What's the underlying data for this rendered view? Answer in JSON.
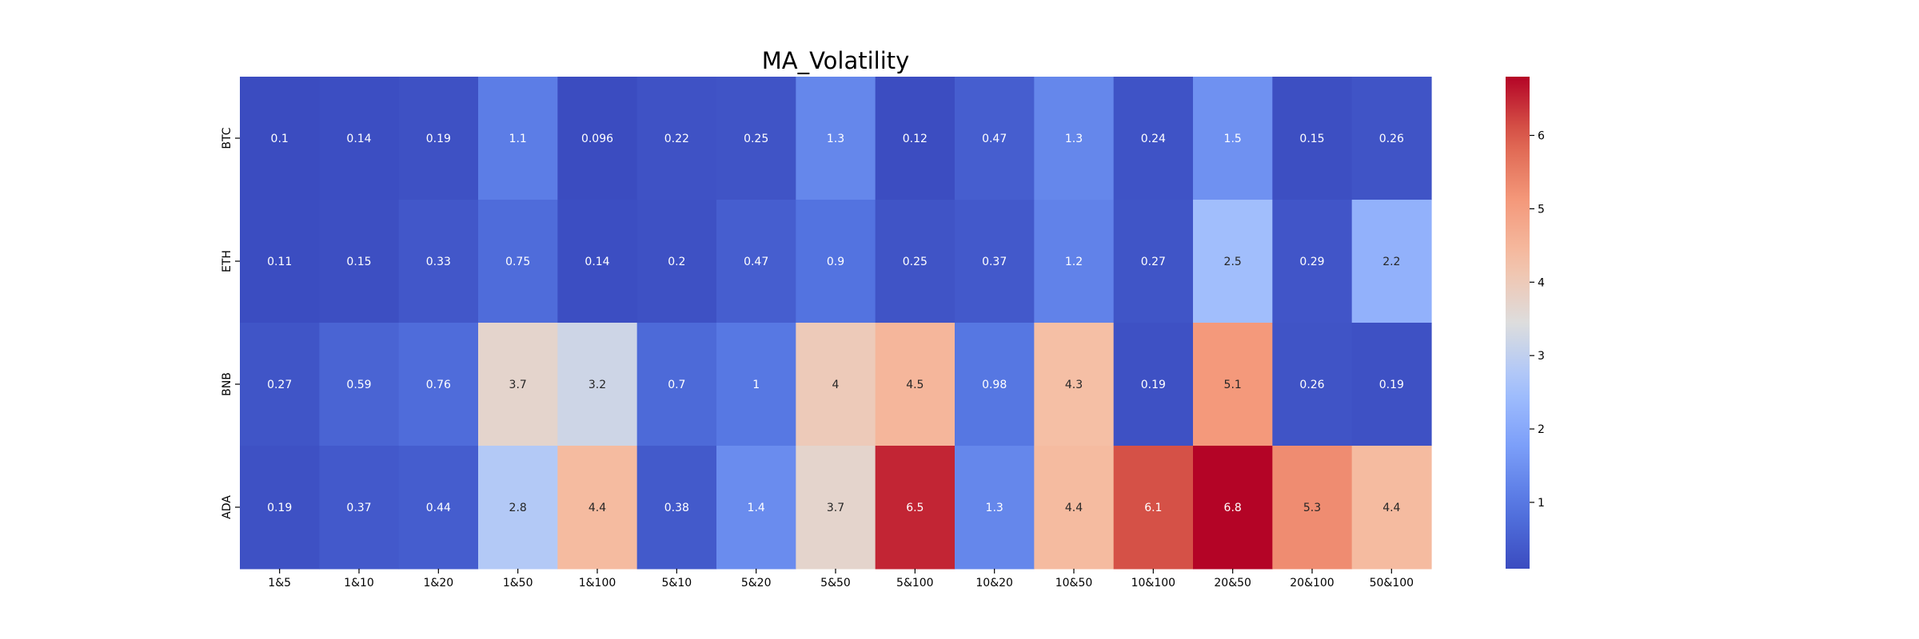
{
  "chart_data": {
    "type": "heatmap",
    "title": "MA_Volatility",
    "x_categories": [
      "1&5",
      "1&10",
      "1&20",
      "1&50",
      "1&100",
      "5&10",
      "5&20",
      "5&50",
      "5&100",
      "10&20",
      "10&50",
      "10&100",
      "20&50",
      "20&100",
      "50&100"
    ],
    "y_categories": [
      "BTC",
      "ETH",
      "BNB",
      "ADA"
    ],
    "values": [
      [
        0.1,
        0.14,
        0.19,
        1.1,
        0.096,
        0.22,
        0.25,
        1.3,
        0.12,
        0.47,
        1.3,
        0.24,
        1.5,
        0.15,
        0.26
      ],
      [
        0.11,
        0.15,
        0.33,
        0.75,
        0.14,
        0.2,
        0.47,
        0.9,
        0.25,
        0.37,
        1.2,
        0.27,
        2.5,
        0.29,
        2.2
      ],
      [
        0.27,
        0.59,
        0.76,
        3.7,
        3.2,
        0.7,
        1,
        4,
        4.5,
        0.98,
        4.3,
        0.19,
        5.1,
        0.26,
        0.19
      ],
      [
        0.19,
        0.37,
        0.44,
        2.8,
        4.4,
        0.38,
        1.4,
        3.7,
        6.5,
        1.3,
        4.4,
        6.1,
        6.8,
        5.3,
        4.4
      ]
    ],
    "colormap": "coolwarm",
    "value_range": [
      0.096,
      6.8
    ],
    "colorbar": {
      "ticks": [
        1,
        2,
        3,
        4,
        5,
        6
      ]
    }
  }
}
